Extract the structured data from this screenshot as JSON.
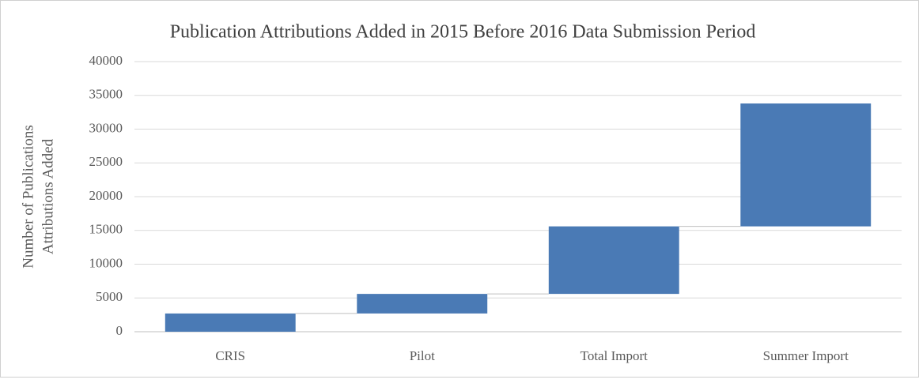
{
  "chart_data": {
    "type": "waterfall",
    "title": "Publication Attributions Added in 2015 Before 2016 Data Submission Period",
    "y_label": [
      "Number of Publications",
      "Attributions Added"
    ],
    "categories": [
      "CRIS",
      "Pilot",
      "Total Import",
      "Summer Import"
    ],
    "values": [
      2700,
      2900,
      10000,
      18200
    ],
    "color": "#4a7ab5",
    "ylim": [
      0,
      40000
    ],
    "yticks": [
      0,
      5000,
      10000,
      15000,
      20000,
      25000,
      30000,
      35000,
      40000
    ],
    "grid": true
  }
}
